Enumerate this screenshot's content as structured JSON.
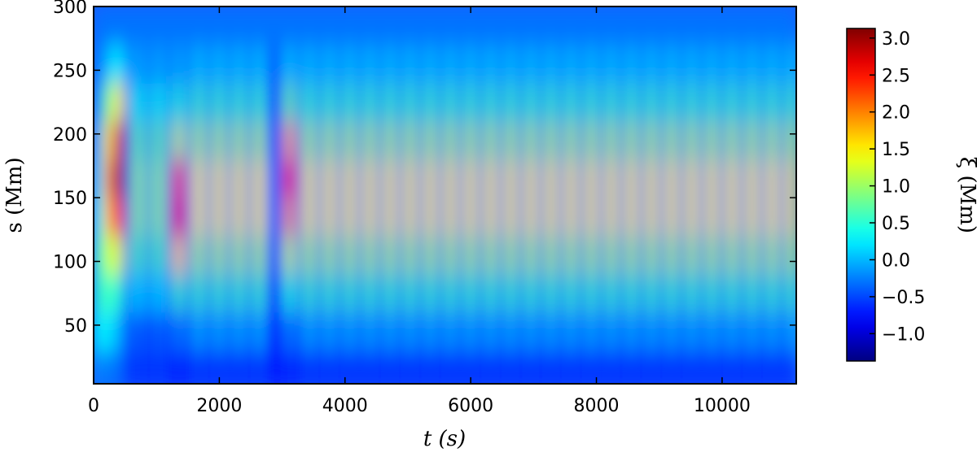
{
  "chart_data": {
    "type": "heatmap",
    "xlabel": "t (s)",
    "ylabel": "s (Mm)",
    "colorbar_label": "ξ (Mm)",
    "xlim": [
      0,
      11180
    ],
    "ylim": [
      4,
      300
    ],
    "xticks": [
      0,
      2000,
      4000,
      6000,
      8000,
      10000
    ],
    "yticks": [
      50,
      100,
      150,
      200,
      250,
      300
    ],
    "clim": [
      -1.37,
      3.13
    ],
    "cticks": [
      {
        "value": -1,
        "label": "−1.0"
      },
      {
        "value": -0.5,
        "label": "−0.5"
      },
      {
        "value": 0,
        "label": "0.0"
      },
      {
        "value": 0.5,
        "label": "0.5"
      },
      {
        "value": 1,
        "label": "1.0"
      },
      {
        "value": 1.5,
        "label": "1.5"
      },
      {
        "value": 2,
        "label": "2.0"
      },
      {
        "value": 2.5,
        "label": "2.5"
      },
      {
        "value": 3,
        "label": "3.0"
      }
    ],
    "colormap": "jet",
    "x": [
      80,
      240,
      400,
      560,
      720,
      880,
      1040,
      1200,
      1360,
      1520,
      1680,
      1840,
      2000,
      2160,
      2320,
      2480,
      2640,
      2800,
      2960,
      3120,
      3280,
      3440,
      3600,
      3760,
      3920,
      4080,
      4240,
      4400,
      4560,
      4720,
      4880,
      5040,
      5200,
      5360,
      5520,
      5680,
      5840,
      6000,
      6160,
      6320,
      6480,
      6640,
      6800,
      6960,
      7120,
      7280,
      7440,
      7600,
      7760,
      7920,
      8080,
      8240,
      8400,
      8560,
      8720,
      8880,
      9040,
      9200,
      9360,
      9520,
      9680,
      9840,
      10000,
      10160,
      10320,
      10480,
      10640,
      10800,
      10960,
      11120
    ],
    "y": [
      15,
      45,
      75,
      105,
      135,
      165,
      195,
      225,
      255,
      285
    ],
    "z": [
      [
        -0.2,
        -0.3,
        -0.3,
        -0.7,
        -0.5,
        -0.7,
        -0.5,
        -0.7,
        -0.6,
        -0.7,
        -0.5,
        -0.7,
        -0.5,
        -0.7,
        -0.5,
        -0.7,
        -0.5,
        -0.7,
        -0.7,
        -0.6,
        -0.7,
        -0.5,
        -0.7,
        -0.5,
        -0.7,
        -0.5,
        -0.7,
        -0.5,
        -0.7,
        -0.5,
        -0.7,
        -0.5,
        -0.7,
        -0.5,
        -0.7,
        -0.5,
        -0.7,
        -0.5,
        -0.7,
        -0.5,
        -0.7,
        -0.5,
        -0.7,
        -0.5,
        -0.7,
        -0.5,
        -0.7,
        -0.5,
        -0.7,
        -0.5,
        -0.7,
        -0.5,
        -0.7,
        -0.5,
        -0.7,
        -0.5,
        -0.7,
        -0.5,
        -0.7,
        -0.5,
        -0.7,
        -0.5,
        -0.7,
        -0.5,
        -0.7,
        -0.5,
        -0.7,
        -0.5,
        -0.7,
        -0.5
      ],
      [
        0.3,
        0.2,
        0.0,
        -0.7,
        -0.3,
        -0.7,
        -0.3,
        -0.7,
        -0.2,
        -0.7,
        0.0,
        -0.7,
        0.0,
        -0.7,
        0.0,
        -0.7,
        0.0,
        -0.7,
        -0.7,
        -0.2,
        -0.7,
        0.0,
        -0.7,
        0.0,
        -0.7,
        0.0,
        -0.7,
        0.0,
        -0.7,
        0.0,
        -0.7,
        0.0,
        -0.7,
        0.0,
        -0.7,
        0.0,
        -0.7,
        0.0,
        -0.7,
        0.0,
        -0.7,
        0.0,
        -0.7,
        0.0,
        -0.7,
        0.0,
        -0.7,
        0.0,
        -0.7,
        0.0,
        -0.7,
        0.0,
        -0.7,
        0.0,
        -0.7,
        0.0,
        -0.7,
        0.0,
        -0.7,
        0.0,
        -0.7,
        0.0,
        -0.7,
        0.0,
        -0.7,
        0.0,
        -0.7,
        0.0,
        -0.7,
        0.0
      ],
      [
        0.5,
        0.6,
        0.5,
        -0.6,
        0.2,
        -0.6,
        0.2,
        -0.6,
        0.6,
        -0.6,
        0.6,
        -0.6,
        0.6,
        -0.6,
        0.6,
        -0.6,
        0.6,
        -0.6,
        -0.6,
        0.5,
        -0.6,
        0.6,
        -0.6,
        0.6,
        -0.6,
        0.6,
        -0.6,
        0.6,
        -0.6,
        0.6,
        -0.6,
        0.6,
        -0.6,
        0.6,
        -0.6,
        0.6,
        -0.6,
        0.6,
        -0.6,
        0.6,
        -0.6,
        0.6,
        -0.6,
        0.6,
        -0.6,
        0.6,
        -0.6,
        0.6,
        -0.6,
        0.6,
        -0.6,
        0.6,
        -0.6,
        0.6,
        -0.6,
        0.6,
        -0.6,
        0.6,
        -0.6,
        0.6,
        -0.6,
        0.6,
        -0.6,
        0.6,
        -0.6,
        0.6,
        -0.6,
        0.6,
        -0.6,
        0.6
      ],
      [
        0.5,
        1.2,
        1.3,
        -0.5,
        0.7,
        -0.5,
        0.7,
        -0.5,
        1.6,
        -0.5,
        1.1,
        -0.5,
        1.1,
        -0.5,
        1.1,
        -0.5,
        1.1,
        -0.5,
        -0.5,
        1.2,
        -0.5,
        1.1,
        -0.5,
        1.1,
        -0.5,
        1.1,
        -0.5,
        1.1,
        -0.5,
        1.1,
        -0.5,
        1.1,
        -0.5,
        1.1,
        -0.5,
        1.1,
        -0.5,
        1.1,
        -0.5,
        1.1,
        -0.5,
        1.1,
        -0.5,
        1.1,
        -0.5,
        1.1,
        -0.5,
        1.1,
        -0.5,
        1.1,
        -0.5,
        1.1,
        -0.5,
        1.1,
        -0.5,
        1.1,
        -0.5,
        1.1,
        -0.5,
        1.1,
        -0.5,
        1.1,
        -0.5,
        1.1,
        -0.5,
        1.1,
        -0.5,
        1.1,
        -0.5,
        1.1
      ],
      [
        0.3,
        1.8,
        2.4,
        -0.4,
        1.0,
        -0.4,
        1.0,
        -0.4,
        2.6,
        -0.4,
        1.5,
        -0.4,
        1.5,
        -0.4,
        1.5,
        -0.4,
        1.5,
        -0.4,
        -0.4,
        1.9,
        -0.4,
        1.5,
        -0.4,
        1.5,
        -0.4,
        1.5,
        -0.4,
        1.5,
        -0.4,
        1.5,
        -0.4,
        1.5,
        -0.4,
        1.5,
        -0.4,
        1.5,
        -0.4,
        1.5,
        -0.4,
        1.5,
        -0.4,
        1.5,
        -0.4,
        1.5,
        -0.4,
        1.5,
        -0.4,
        1.5,
        -0.4,
        1.5,
        -0.4,
        1.5,
        -0.4,
        1.5,
        -0.4,
        1.5,
        -0.4,
        1.5,
        -0.4,
        1.5,
        -0.4,
        1.5,
        -0.4,
        1.5,
        -0.4,
        1.5,
        -0.4,
        1.5,
        -0.4,
        1.5
      ],
      [
        0.2,
        2.0,
        3.0,
        -0.4,
        1.0,
        -0.4,
        1.0,
        -0.4,
        2.2,
        -0.4,
        1.5,
        -0.4,
        1.5,
        -0.4,
        1.5,
        -0.4,
        1.5,
        -0.4,
        -0.4,
        2.5,
        -0.4,
        1.5,
        -0.4,
        1.5,
        -0.4,
        1.5,
        -0.4,
        1.5,
        -0.4,
        1.5,
        -0.4,
        1.5,
        -0.4,
        1.5,
        -0.4,
        1.5,
        -0.4,
        1.5,
        -0.4,
        1.5,
        -0.4,
        1.5,
        -0.4,
        1.5,
        -0.4,
        1.5,
        -0.4,
        1.5,
        -0.4,
        1.5,
        -0.4,
        1.5,
        -0.4,
        1.5,
        -0.4,
        1.5,
        -0.4,
        1.5,
        -0.4,
        1.5,
        -0.4,
        1.5,
        -0.4,
        1.5,
        -0.4,
        1.5,
        -0.4,
        1.5,
        -0.4,
        1.5
      ],
      [
        0.0,
        1.6,
        2.8,
        -0.5,
        0.8,
        -0.5,
        0.8,
        -0.5,
        1.2,
        -0.5,
        1.1,
        -0.5,
        1.1,
        -0.5,
        1.1,
        -0.5,
        1.1,
        -0.5,
        -0.5,
        1.8,
        -0.5,
        1.1,
        -0.5,
        1.1,
        -0.5,
        1.1,
        -0.5,
        1.1,
        -0.5,
        1.1,
        -0.5,
        1.1,
        -0.5,
        1.1,
        -0.5,
        1.1,
        -0.5,
        1.1,
        -0.5,
        1.1,
        -0.5,
        1.1,
        -0.5,
        1.1,
        -0.5,
        1.1,
        -0.5,
        1.1,
        -0.5,
        1.1,
        -0.5,
        1.1,
        -0.5,
        1.1,
        -0.5,
        1.1,
        -0.5,
        1.1,
        -0.5,
        1.1,
        -0.5,
        1.1,
        -0.5,
        1.1,
        -0.5,
        1.1,
        -0.5,
        1.1,
        -0.5,
        1.1
      ],
      [
        -0.2,
        0.8,
        1.5,
        -0.5,
        0.4,
        -0.5,
        0.4,
        -0.5,
        0.5,
        -0.5,
        0.6,
        -0.5,
        0.6,
        -0.5,
        0.6,
        -0.5,
        0.6,
        -0.5,
        -0.5,
        0.8,
        -0.5,
        0.6,
        -0.5,
        0.6,
        -0.5,
        0.6,
        -0.5,
        0.6,
        -0.5,
        0.6,
        -0.5,
        0.6,
        -0.5,
        0.6,
        -0.5,
        0.6,
        -0.5,
        0.6,
        -0.5,
        0.6,
        -0.5,
        0.6,
        -0.5,
        0.6,
        -0.5,
        0.6,
        -0.5,
        0.6,
        -0.5,
        0.6,
        -0.5,
        0.6,
        -0.5,
        0.6,
        -0.5,
        0.6,
        -0.5,
        0.6,
        -0.5,
        0.6,
        -0.5,
        0.6,
        -0.5,
        0.6,
        -0.5,
        0.6,
        -0.5,
        0.6,
        -0.5,
        0.6
      ],
      [
        -0.3,
        0.0,
        0.3,
        -0.4,
        0.0,
        -0.4,
        0.0,
        -0.4,
        0.0,
        -0.4,
        0.1,
        -0.4,
        0.1,
        -0.4,
        0.1,
        -0.4,
        0.1,
        -0.4,
        -0.4,
        0.1,
        -0.4,
        0.1,
        -0.4,
        0.1,
        -0.4,
        0.1,
        -0.4,
        0.1,
        -0.4,
        0.1,
        -0.4,
        0.1,
        -0.4,
        0.1,
        -0.4,
        0.1,
        -0.4,
        0.1,
        -0.4,
        0.1,
        -0.4,
        0.1,
        -0.4,
        0.1,
        -0.4,
        0.1,
        -0.4,
        0.1,
        -0.4,
        0.1,
        -0.4,
        0.1,
        -0.4,
        0.1,
        -0.4,
        0.1,
        -0.4,
        0.1,
        -0.4,
        0.1,
        -0.4,
        0.1,
        -0.4,
        0.1,
        -0.4,
        0.1,
        -0.4,
        0.1,
        -0.4,
        0.1
      ],
      [
        -0.3,
        -0.3,
        -0.3,
        -0.3,
        -0.3,
        -0.3,
        -0.3,
        -0.3,
        -0.3,
        -0.3,
        -0.3,
        -0.3,
        -0.3,
        -0.3,
        -0.3,
        -0.3,
        -0.3,
        -0.3,
        -0.3,
        -0.3,
        -0.3,
        -0.3,
        -0.3,
        -0.3,
        -0.3,
        -0.3,
        -0.3,
        -0.3,
        -0.3,
        -0.3,
        -0.3,
        -0.3,
        -0.3,
        -0.3,
        -0.3,
        -0.3,
        -0.3,
        -0.3,
        -0.3,
        -0.3,
        -0.3,
        -0.3,
        -0.3,
        -0.3,
        -0.3,
        -0.3,
        -0.3,
        -0.3,
        -0.3,
        -0.3,
        -0.3,
        -0.3,
        -0.3,
        -0.3,
        -0.3,
        -0.3,
        -0.3,
        -0.3,
        -0.3,
        -0.3,
        -0.3,
        -0.3,
        -0.3,
        -0.3,
        -0.3,
        -0.3,
        -0.3,
        -0.3,
        -0.3,
        -0.3
      ]
    ]
  }
}
